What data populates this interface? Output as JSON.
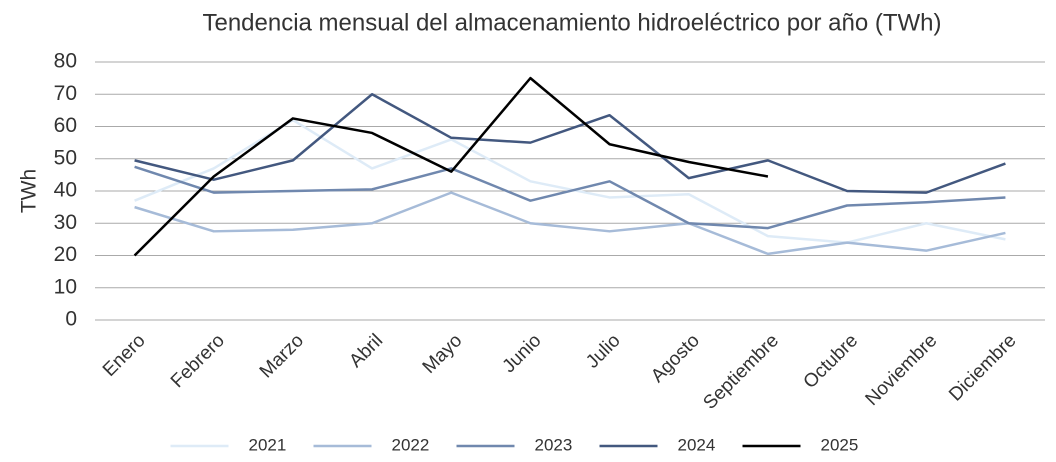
{
  "chart_data": {
    "type": "line",
    "title": "Tendencia mensual del almacenamiento hidroeléctrico por año (TWh)",
    "y_label": "TWh",
    "categories": [
      "Enero",
      "Febrero",
      "Marzo",
      "Abril",
      "Mayo",
      "Junio",
      "Julio",
      "Agosto",
      "Septiembre",
      "Octubre",
      "Noviembre",
      "Diciembre"
    ],
    "series": [
      {
        "name": "2021",
        "color": "#deebf7",
        "values": [
          37,
          47,
          62,
          47,
          56,
          43,
          38,
          39,
          26,
          24,
          30,
          25
        ]
      },
      {
        "name": "2022",
        "color": "#a6bbd8",
        "values": [
          35,
          27.5,
          28,
          30,
          39.5,
          30,
          27.5,
          30,
          20.5,
          24,
          21.5,
          27
        ]
      },
      {
        "name": "2023",
        "color": "#7088ae",
        "values": [
          47.5,
          39.5,
          40,
          40.5,
          47,
          37,
          43,
          30,
          28.5,
          35.5,
          36.5,
          38
        ]
      },
      {
        "name": "2024",
        "color": "#43587f",
        "values": [
          49.5,
          43.5,
          49.5,
          70,
          56.5,
          55,
          63.5,
          44,
          49.5,
          40,
          39.5,
          48.5
        ]
      },
      {
        "name": "2025",
        "color": "#000000",
        "values": [
          20,
          44.5,
          62.5,
          58,
          46,
          75,
          54.5,
          49,
          44.5,
          null,
          null,
          null
        ]
      }
    ],
    "ylim": [
      0,
      80
    ],
    "yticks": [
      0,
      10,
      20,
      30,
      40,
      50,
      60,
      70,
      80
    ],
    "grid": true,
    "legend": "bottom"
  }
}
